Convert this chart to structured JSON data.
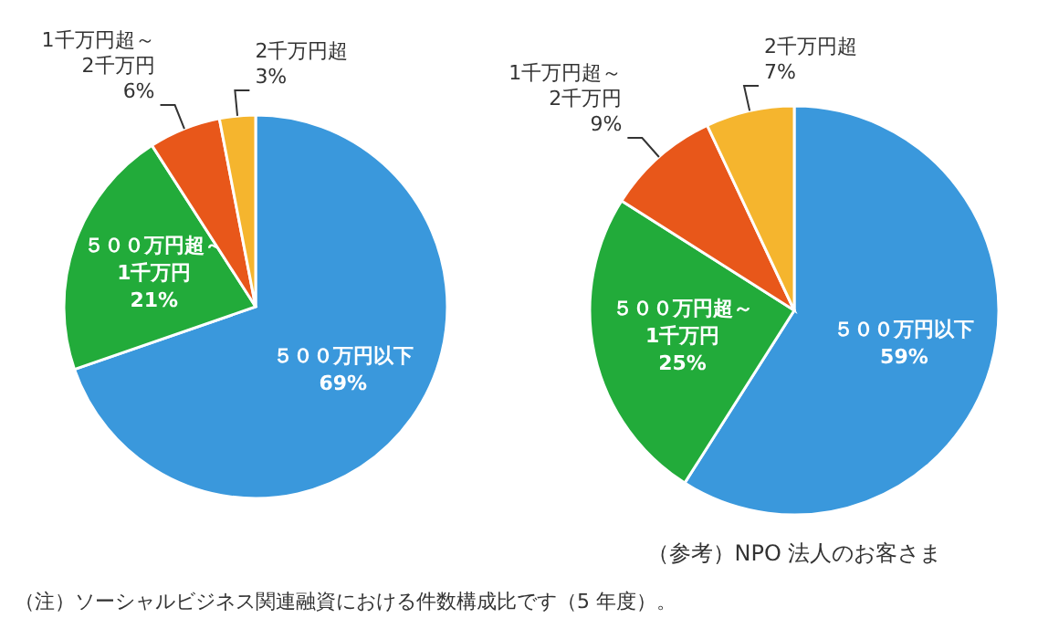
{
  "chart_data": [
    {
      "type": "pie",
      "categories": [
        "５００万円以下",
        "５００万円超～1千万円",
        "1千万円超～2千万円",
        "2千万円超"
      ],
      "values": [
        69,
        21,
        6,
        3
      ],
      "colors": [
        "#3a98dc",
        "#22ab3a",
        "#e8571a",
        "#f5b52e"
      ],
      "value_labels": [
        "69%",
        "21%",
        "6%",
        "3%"
      ],
      "annotations": [
        "（注）ソーシャルビジネス関連融資における件数構成比です（5 年度）。"
      ]
    },
    {
      "type": "pie",
      "categories": [
        "５００万円以下",
        "５００万円超～1千万円",
        "1千万円超～2千万円",
        "2千万円超"
      ],
      "values": [
        59,
        25,
        9,
        7
      ],
      "colors": [
        "#3a98dc",
        "#22ab3a",
        "#e8571a",
        "#f5b52e"
      ],
      "value_labels": [
        "59%",
        "25%",
        "9%",
        "7%"
      ],
      "annotations": [
        "（参考）NPO 法人のお客さま"
      ]
    }
  ]
}
